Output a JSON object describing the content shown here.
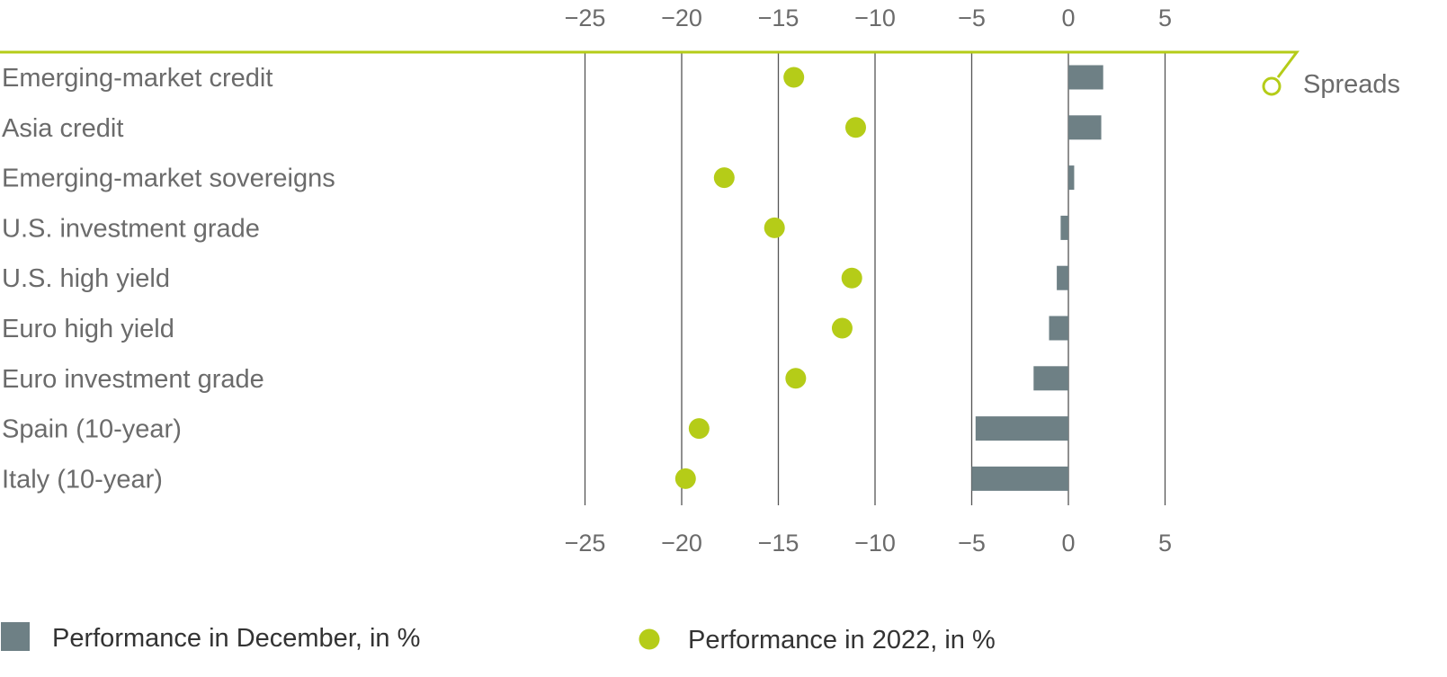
{
  "chart_data": {
    "type": "bar",
    "categories": [
      "Emerging-market credit",
      "Asia credit",
      "Emerging-market sovereigns",
      "U.S. investment grade",
      "U.S. high yield",
      "Euro high yield",
      "Euro investment grade",
      "Spain (10-year)",
      "Italy (10-year)"
    ],
    "series": [
      {
        "name": "Performance in December, in %",
        "mark": "bar",
        "values": [
          1.8,
          1.7,
          0.3,
          -0.4,
          -0.6,
          -1.0,
          -1.8,
          -4.8,
          -5.0
        ]
      },
      {
        "name": "Performance in 2022, in %",
        "mark": "dot",
        "values": [
          -14.2,
          -11.0,
          -17.8,
          -15.2,
          -11.2,
          -11.7,
          -14.1,
          -19.1,
          -19.8
        ]
      }
    ],
    "xticks": [
      "−25",
      "−20",
      "−15",
      "−10",
      "−5",
      "0",
      "5"
    ],
    "xtick_values": [
      -25,
      -20,
      -15,
      -10,
      -5,
      0,
      5
    ],
    "xlim": [
      -25,
      5
    ],
    "grid": true,
    "orientation": "horizontal",
    "axis_position": "top and bottom",
    "legend_position": "bottom",
    "annotation": "Spreads",
    "colors": {
      "bar": "#6e8085",
      "dot": "#b5cc18",
      "accent_line": "#b5cc18",
      "grid": "#555555",
      "text": "#6b6b6b",
      "legend_text": "#333333"
    }
  },
  "legend": {
    "items": [
      {
        "label": "Performance in December, in %",
        "marker": "square"
      },
      {
        "label": "Performance in 2022, in %",
        "marker": "circle"
      }
    ]
  },
  "annotation": {
    "label": "Spreads"
  }
}
